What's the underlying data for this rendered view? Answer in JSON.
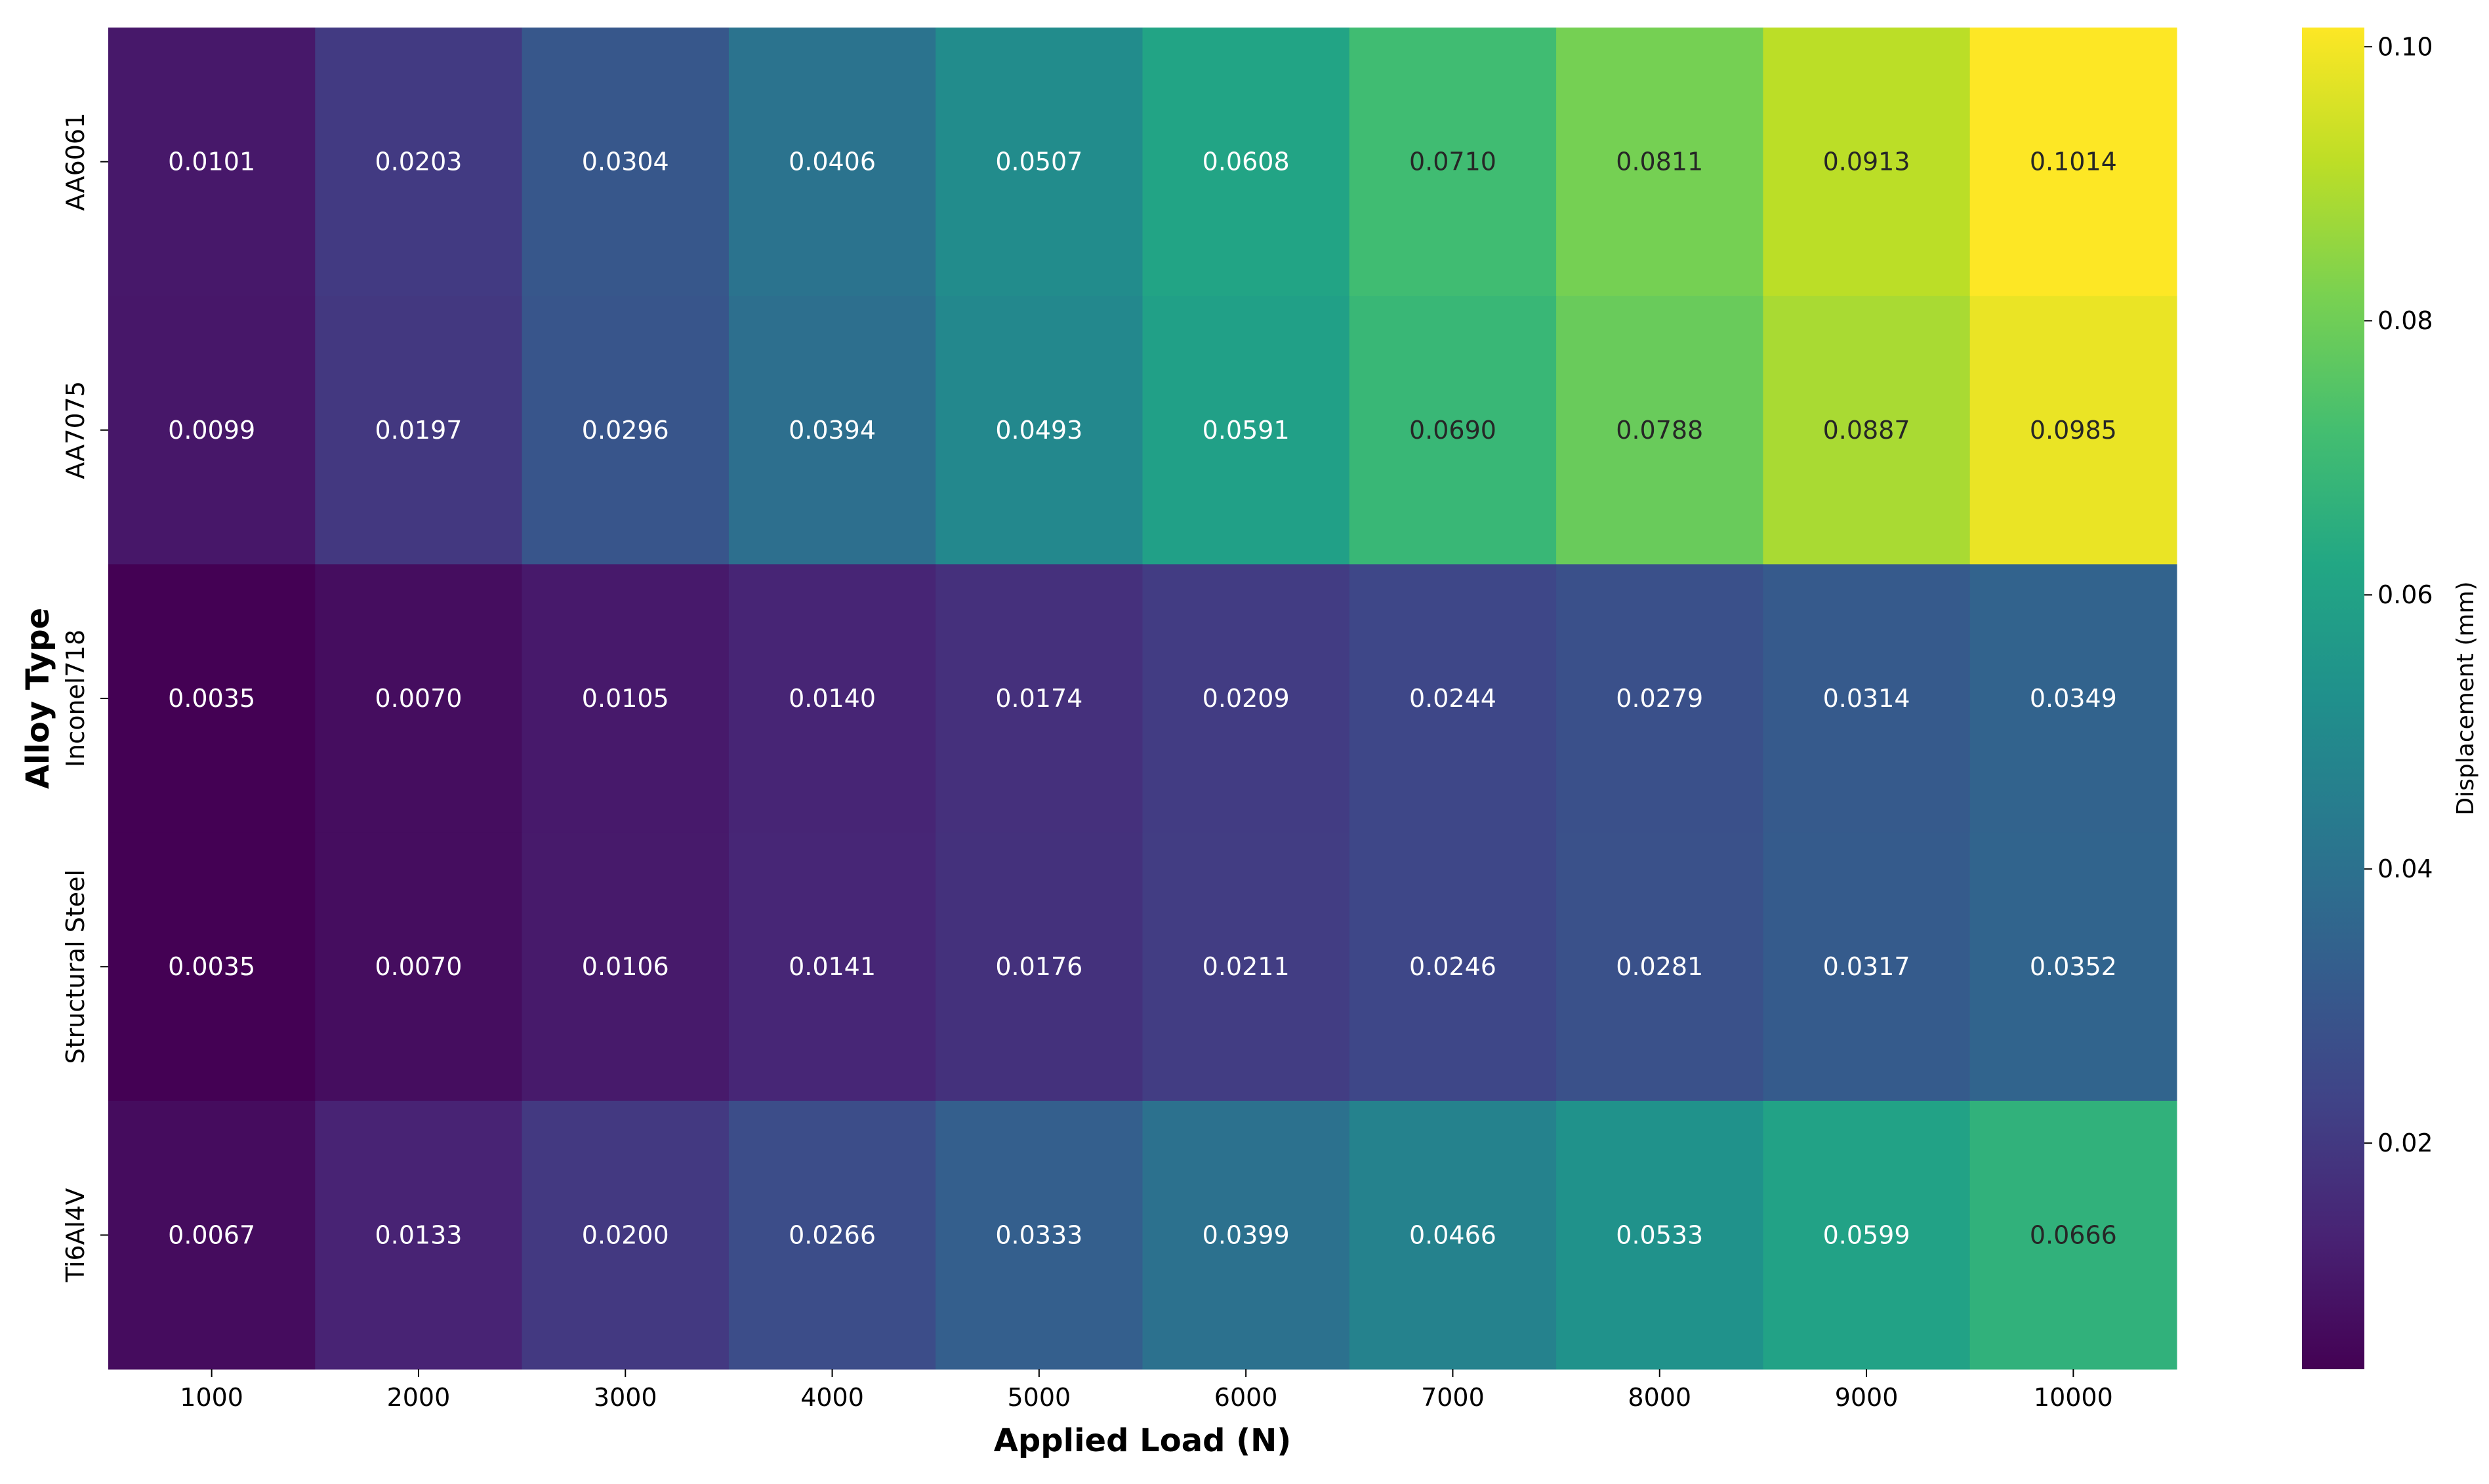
{
  "chart_data": {
    "type": "heatmap",
    "xlabel": "Applied Load (N)",
    "ylabel": "Alloy Type",
    "x_categories": [
      "1000",
      "2000",
      "3000",
      "4000",
      "5000",
      "6000",
      "7000",
      "8000",
      "9000",
      "10000"
    ],
    "y_categories": [
      "AA6061",
      "AA7075",
      "Inconel718",
      "Structural Steel",
      "Ti6Al4V"
    ],
    "values": [
      [
        0.0101,
        0.0203,
        0.0304,
        0.0406,
        0.0507,
        0.0608,
        0.071,
        0.0811,
        0.0913,
        0.1014
      ],
      [
        0.0099,
        0.0197,
        0.0296,
        0.0394,
        0.0493,
        0.0591,
        0.069,
        0.0788,
        0.0887,
        0.0985
      ],
      [
        0.0035,
        0.007,
        0.0105,
        0.014,
        0.0174,
        0.0209,
        0.0244,
        0.0279,
        0.0314,
        0.0349
      ],
      [
        0.0035,
        0.007,
        0.0106,
        0.0141,
        0.0176,
        0.0211,
        0.0246,
        0.0281,
        0.0317,
        0.0352
      ],
      [
        0.0067,
        0.0133,
        0.02,
        0.0266,
        0.0333,
        0.0399,
        0.0466,
        0.0533,
        0.0599,
        0.0666
      ]
    ],
    "value_labels": [
      [
        "0.0101",
        "0.0203",
        "0.0304",
        "0.0406",
        "0.0507",
        "0.0608",
        "0.0710",
        "0.0811",
        "0.0913",
        "0.1014"
      ],
      [
        "0.0099",
        "0.0197",
        "0.0296",
        "0.0394",
        "0.0493",
        "0.0591",
        "0.0690",
        "0.0788",
        "0.0887",
        "0.0985"
      ],
      [
        "0.0035",
        "0.0070",
        "0.0105",
        "0.0140",
        "0.0174",
        "0.0209",
        "0.0244",
        "0.0279",
        "0.0314",
        "0.0349"
      ],
      [
        "0.0035",
        "0.0070",
        "0.0106",
        "0.0141",
        "0.0176",
        "0.0211",
        "0.0246",
        "0.0281",
        "0.0317",
        "0.0352"
      ],
      [
        "0.0067",
        "0.0133",
        "0.0200",
        "0.0266",
        "0.0333",
        "0.0399",
        "0.0466",
        "0.0533",
        "0.0599",
        "0.0666"
      ]
    ],
    "colormap": "viridis",
    "colorbar": {
      "label": "Displacement (mm)",
      "range": [
        0.0035,
        0.1014
      ],
      "ticks": [
        0.02,
        0.04,
        0.06,
        0.08,
        0.1
      ],
      "tick_labels": [
        "0.02",
        "0.04",
        "0.06",
        "0.08",
        "0.10"
      ]
    },
    "legend_placement": "right",
    "grid": false
  }
}
